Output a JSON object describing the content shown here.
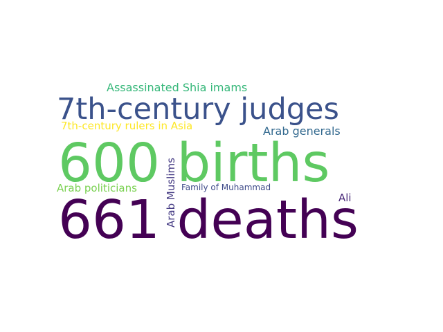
{
  "words": {
    "deaths_661": {
      "text": "661 deaths",
      "color": "#440154"
    },
    "births_600": {
      "text": "600 births",
      "color": "#5ec962"
    },
    "judges": {
      "text": "7th-century judges",
      "color": "#3b528b"
    },
    "shia_imams": {
      "text": "Assassinated Shia imams",
      "color": "#35b779"
    },
    "rulers_asia": {
      "text": "7th-century rulers in Asia",
      "color": "#fde725"
    },
    "arab_generals": {
      "text": "Arab generals",
      "color": "#31688e"
    },
    "arab_politicians": {
      "text": "Arab politicians",
      "color": "#7ad151"
    },
    "family_muhammad": {
      "text": "Family of Muhammad",
      "color": "#3e4a89"
    },
    "ali": {
      "text": "Ali",
      "color": "#482878"
    },
    "arab_muslims": {
      "text": "Arab Muslims",
      "color": "#443a83"
    }
  }
}
